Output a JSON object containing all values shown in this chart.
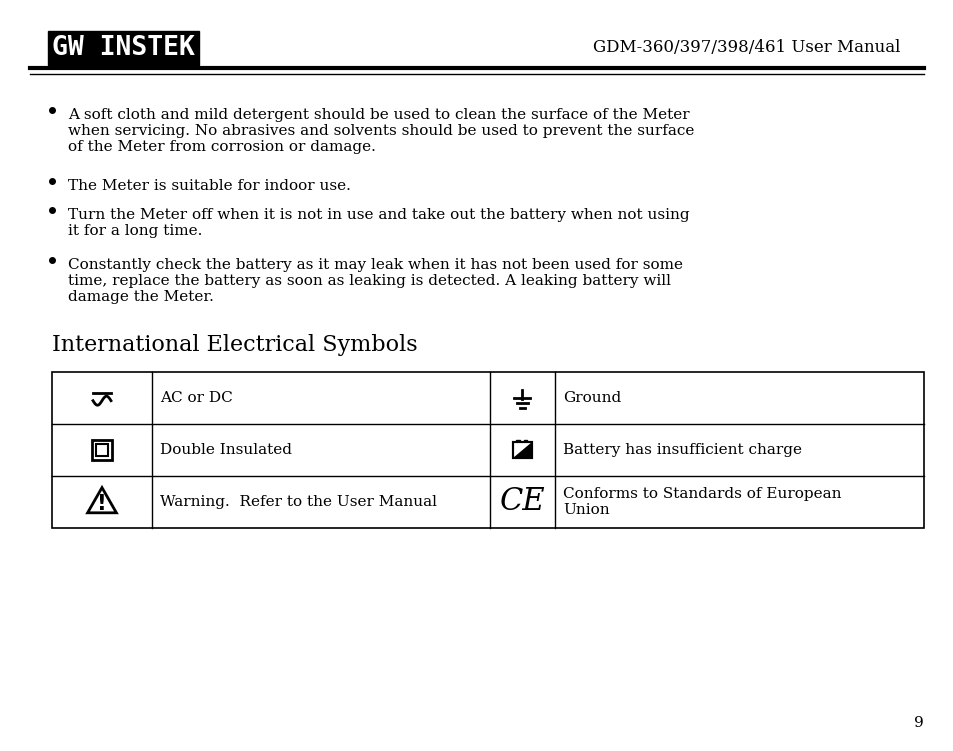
{
  "title": "GDM-360/397/398/461 User Manual",
  "logo_text": "GW INSTEK",
  "section_heading": "International Electrical Symbols",
  "page_number": "9",
  "bullet_points": [
    "A soft cloth and mild detergent should be used to clean the surface of the Meter\nwhen servicing. No abrasives and solvents should be used to prevent the surface\nof the Meter from corrosion or damage.",
    "The Meter is suitable for indoor use.",
    "Turn the Meter off when it is not in use and take out the battery when not using\nit for a long time.",
    "Constantly check the battery as it may leak when it has not been used for some\ntime, replace the battery as soon as leaking is detected. A leaking battery will\ndamage the Meter."
  ],
  "table_rows": [
    {
      "symbol_type": "ac_dc",
      "label": "AC or DC",
      "symbol2_type": "ground",
      "label2": "Ground"
    },
    {
      "symbol_type": "double_insulated",
      "label": "Double Insulated",
      "symbol2_type": "battery",
      "label2": "Battery has insufficient charge"
    },
    {
      "symbol_type": "warning",
      "label": "Warning.  Refer to the User Manual",
      "symbol2_type": "ce",
      "label2": "Conforms to Standards of European\nUnion"
    }
  ],
  "bg_color": "#ffffff",
  "text_color": "#000000",
  "font_size_body": 11,
  "font_size_heading": 16,
  "font_size_header": 12
}
